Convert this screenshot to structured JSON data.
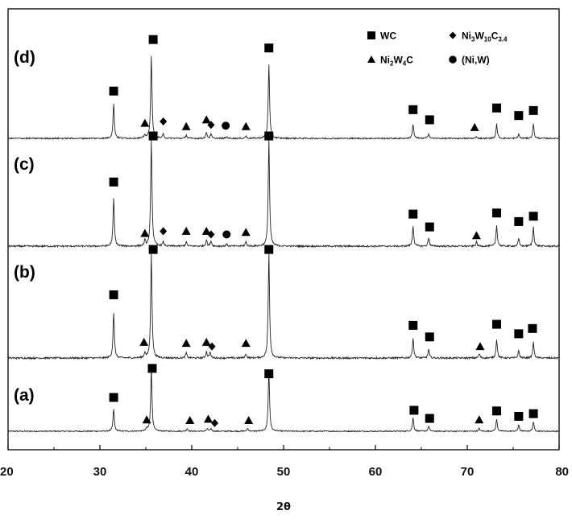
{
  "chart_data": {
    "type": "line",
    "title": "",
    "xlabel": "2θ",
    "ylabel": "",
    "xlim": [
      20,
      80
    ],
    "x_ticks": [
      "20",
      "30",
      "40",
      "50",
      "60",
      "70",
      "80"
    ],
    "grid": false,
    "legend_position": "top-right",
    "legend": [
      {
        "phase": "WC",
        "marker": "square",
        "text": "WC"
      },
      {
        "phase": "Ni3W10C3.4",
        "marker": "diamond",
        "parts": [
          "Ni",
          "3",
          "W",
          "10",
          "C",
          "3.4"
        ]
      },
      {
        "phase": "Ni2W4C",
        "marker": "triangle",
        "parts": [
          "Ni",
          "2",
          "W",
          "4",
          "C"
        ]
      },
      {
        "phase": "(Ni,W)",
        "marker": "circle",
        "text": "(Ni,W)"
      }
    ],
    "series": [
      {
        "name": "(a)",
        "peaks": [
          {
            "x": 31.5,
            "h": 0.33
          },
          {
            "x": 35.1,
            "h": 0.04
          },
          {
            "x": 35.6,
            "h": 0.93
          },
          {
            "x": 39.5,
            "h": 0.04
          },
          {
            "x": 41.7,
            "h": 0.04
          },
          {
            "x": 42.1,
            "h": 0.04
          },
          {
            "x": 46.1,
            "h": 0.04
          },
          {
            "x": 48.4,
            "h": 0.9
          },
          {
            "x": 64.1,
            "h": 0.2
          },
          {
            "x": 65.8,
            "h": 0.07
          },
          {
            "x": 71.3,
            "h": 0.04
          },
          {
            "x": 73.2,
            "h": 0.18
          },
          {
            "x": 75.6,
            "h": 0.09
          },
          {
            "x": 77.2,
            "h": 0.14
          }
        ],
        "markers": [
          {
            "x": 31.5,
            "m": "square",
            "y": 0.5
          },
          {
            "x": 35.7,
            "m": "square",
            "y": 0.93
          },
          {
            "x": 48.4,
            "m": "square",
            "y": 0.85
          },
          {
            "x": 64.2,
            "m": "square",
            "y": 0.31
          },
          {
            "x": 65.9,
            "m": "square",
            "y": 0.19
          },
          {
            "x": 73.2,
            "m": "square",
            "y": 0.3
          },
          {
            "x": 75.6,
            "m": "square",
            "y": 0.22
          },
          {
            "x": 77.2,
            "m": "square",
            "y": 0.26
          },
          {
            "x": 35.1,
            "m": "triangle",
            "y": 0.17
          },
          {
            "x": 39.8,
            "m": "triangle",
            "y": 0.16
          },
          {
            "x": 41.8,
            "m": "triangle",
            "y": 0.18
          },
          {
            "x": 46.2,
            "m": "triangle",
            "y": 0.16
          },
          {
            "x": 71.3,
            "m": "triangle",
            "y": 0.17
          },
          {
            "x": 42.5,
            "m": "diamond",
            "y": 0.12
          }
        ]
      },
      {
        "name": "(b)",
        "peaks": [
          {
            "x": 31.5,
            "h": 0.43
          },
          {
            "x": 34.9,
            "h": 0.05
          },
          {
            "x": 35.6,
            "h": 1.0
          },
          {
            "x": 39.4,
            "h": 0.05
          },
          {
            "x": 41.6,
            "h": 0.06
          },
          {
            "x": 42.0,
            "h": 0.06
          },
          {
            "x": 45.9,
            "h": 0.04
          },
          {
            "x": 48.4,
            "h": 1.0
          },
          {
            "x": 64.1,
            "h": 0.19
          },
          {
            "x": 65.8,
            "h": 0.08
          },
          {
            "x": 71.3,
            "h": 0.04
          },
          {
            "x": 73.2,
            "h": 0.18
          },
          {
            "x": 75.6,
            "h": 0.07
          },
          {
            "x": 77.2,
            "h": 0.15
          }
        ],
        "markers": [
          {
            "x": 31.5,
            "m": "square",
            "y": 0.6
          },
          {
            "x": 35.8,
            "m": "square",
            "y": 1.03
          },
          {
            "x": 48.4,
            "m": "square",
            "y": 1.03
          },
          {
            "x": 64.1,
            "m": "square",
            "y": 0.31
          },
          {
            "x": 65.9,
            "m": "square",
            "y": 0.2
          },
          {
            "x": 73.2,
            "m": "square",
            "y": 0.32
          },
          {
            "x": 75.6,
            "m": "square",
            "y": 0.23
          },
          {
            "x": 77.1,
            "m": "square",
            "y": 0.28
          },
          {
            "x": 34.8,
            "m": "triangle",
            "y": 0.15
          },
          {
            "x": 39.4,
            "m": "triangle",
            "y": 0.14
          },
          {
            "x": 41.6,
            "m": "triangle",
            "y": 0.15
          },
          {
            "x": 45.9,
            "m": "triangle",
            "y": 0.14
          },
          {
            "x": 71.4,
            "m": "triangle",
            "y": 0.11
          },
          {
            "x": 42.2,
            "m": "diamond",
            "y": 0.11
          }
        ]
      },
      {
        "name": "(c)",
        "peaks": [
          {
            "x": 31.5,
            "h": 0.44
          },
          {
            "x": 34.9,
            "h": 0.05
          },
          {
            "x": 35.6,
            "h": 1.0
          },
          {
            "x": 36.9,
            "h": 0.04
          },
          {
            "x": 39.4,
            "h": 0.04
          },
          {
            "x": 41.6,
            "h": 0.06
          },
          {
            "x": 42.1,
            "h": 0.05
          },
          {
            "x": 43.8,
            "h": 0.02
          },
          {
            "x": 45.9,
            "h": 0.04
          },
          {
            "x": 48.4,
            "h": 1.0
          },
          {
            "x": 64.1,
            "h": 0.19
          },
          {
            "x": 65.8,
            "h": 0.08
          },
          {
            "x": 71.0,
            "h": 0.04
          },
          {
            "x": 73.2,
            "h": 0.2
          },
          {
            "x": 75.6,
            "h": 0.07
          },
          {
            "x": 77.2,
            "h": 0.18
          }
        ],
        "markers": [
          {
            "x": 31.5,
            "m": "square",
            "y": 0.6
          },
          {
            "x": 35.8,
            "m": "square",
            "y": 1.03
          },
          {
            "x": 48.4,
            "m": "square",
            "y": 1.03
          },
          {
            "x": 64.1,
            "m": "square",
            "y": 0.3
          },
          {
            "x": 65.9,
            "m": "square",
            "y": 0.18
          },
          {
            "x": 73.2,
            "m": "square",
            "y": 0.31
          },
          {
            "x": 75.6,
            "m": "square",
            "y": 0.23
          },
          {
            "x": 77.2,
            "m": "square",
            "y": 0.28
          },
          {
            "x": 34.9,
            "m": "triangle",
            "y": 0.12
          },
          {
            "x": 39.4,
            "m": "triangle",
            "y": 0.14
          },
          {
            "x": 41.6,
            "m": "triangle",
            "y": 0.14
          },
          {
            "x": 45.9,
            "m": "triangle",
            "y": 0.13
          },
          {
            "x": 71.0,
            "m": "triangle",
            "y": 0.1
          },
          {
            "x": 36.9,
            "m": "diamond",
            "y": 0.14
          },
          {
            "x": 42.1,
            "m": "diamond",
            "y": 0.11
          },
          {
            "x": 43.8,
            "m": "circle",
            "y": 0.11
          }
        ]
      },
      {
        "name": "(d)",
        "peaks": [
          {
            "x": 31.5,
            "h": 0.41
          },
          {
            "x": 34.9,
            "h": 0.04
          },
          {
            "x": 35.6,
            "h": 0.98
          },
          {
            "x": 36.9,
            "h": 0.05
          },
          {
            "x": 39.4,
            "h": 0.04
          },
          {
            "x": 41.6,
            "h": 0.07
          },
          {
            "x": 42.1,
            "h": 0.05
          },
          {
            "x": 43.8,
            "h": 0.02
          },
          {
            "x": 45.9,
            "h": 0.03
          },
          {
            "x": 48.4,
            "h": 0.88
          },
          {
            "x": 64.1,
            "h": 0.17
          },
          {
            "x": 65.8,
            "h": 0.06
          },
          {
            "x": 71.0,
            "h": 0.02
          },
          {
            "x": 73.2,
            "h": 0.17
          },
          {
            "x": 75.6,
            "h": 0.05
          },
          {
            "x": 77.2,
            "h": 0.17
          }
        ],
        "markers": [
          {
            "x": 31.5,
            "m": "square",
            "y": 0.56
          },
          {
            "x": 35.8,
            "m": "square",
            "y": 1.17
          },
          {
            "x": 48.4,
            "m": "square",
            "y": 1.07
          },
          {
            "x": 64.1,
            "m": "square",
            "y": 0.34
          },
          {
            "x": 65.9,
            "m": "square",
            "y": 0.22
          },
          {
            "x": 73.2,
            "m": "square",
            "y": 0.36
          },
          {
            "x": 75.6,
            "m": "square",
            "y": 0.27
          },
          {
            "x": 77.2,
            "m": "square",
            "y": 0.33
          },
          {
            "x": 34.9,
            "m": "triangle",
            "y": 0.18
          },
          {
            "x": 39.4,
            "m": "triangle",
            "y": 0.14
          },
          {
            "x": 41.6,
            "m": "triangle",
            "y": 0.22
          },
          {
            "x": 45.9,
            "m": "triangle",
            "y": 0.14
          },
          {
            "x": 70.8,
            "m": "triangle",
            "y": 0.13
          },
          {
            "x": 36.9,
            "m": "diamond",
            "y": 0.2
          },
          {
            "x": 42.1,
            "m": "diamond",
            "y": 0.16
          },
          {
            "x": 43.7,
            "m": "circle",
            "y": 0.15
          }
        ]
      }
    ]
  }
}
